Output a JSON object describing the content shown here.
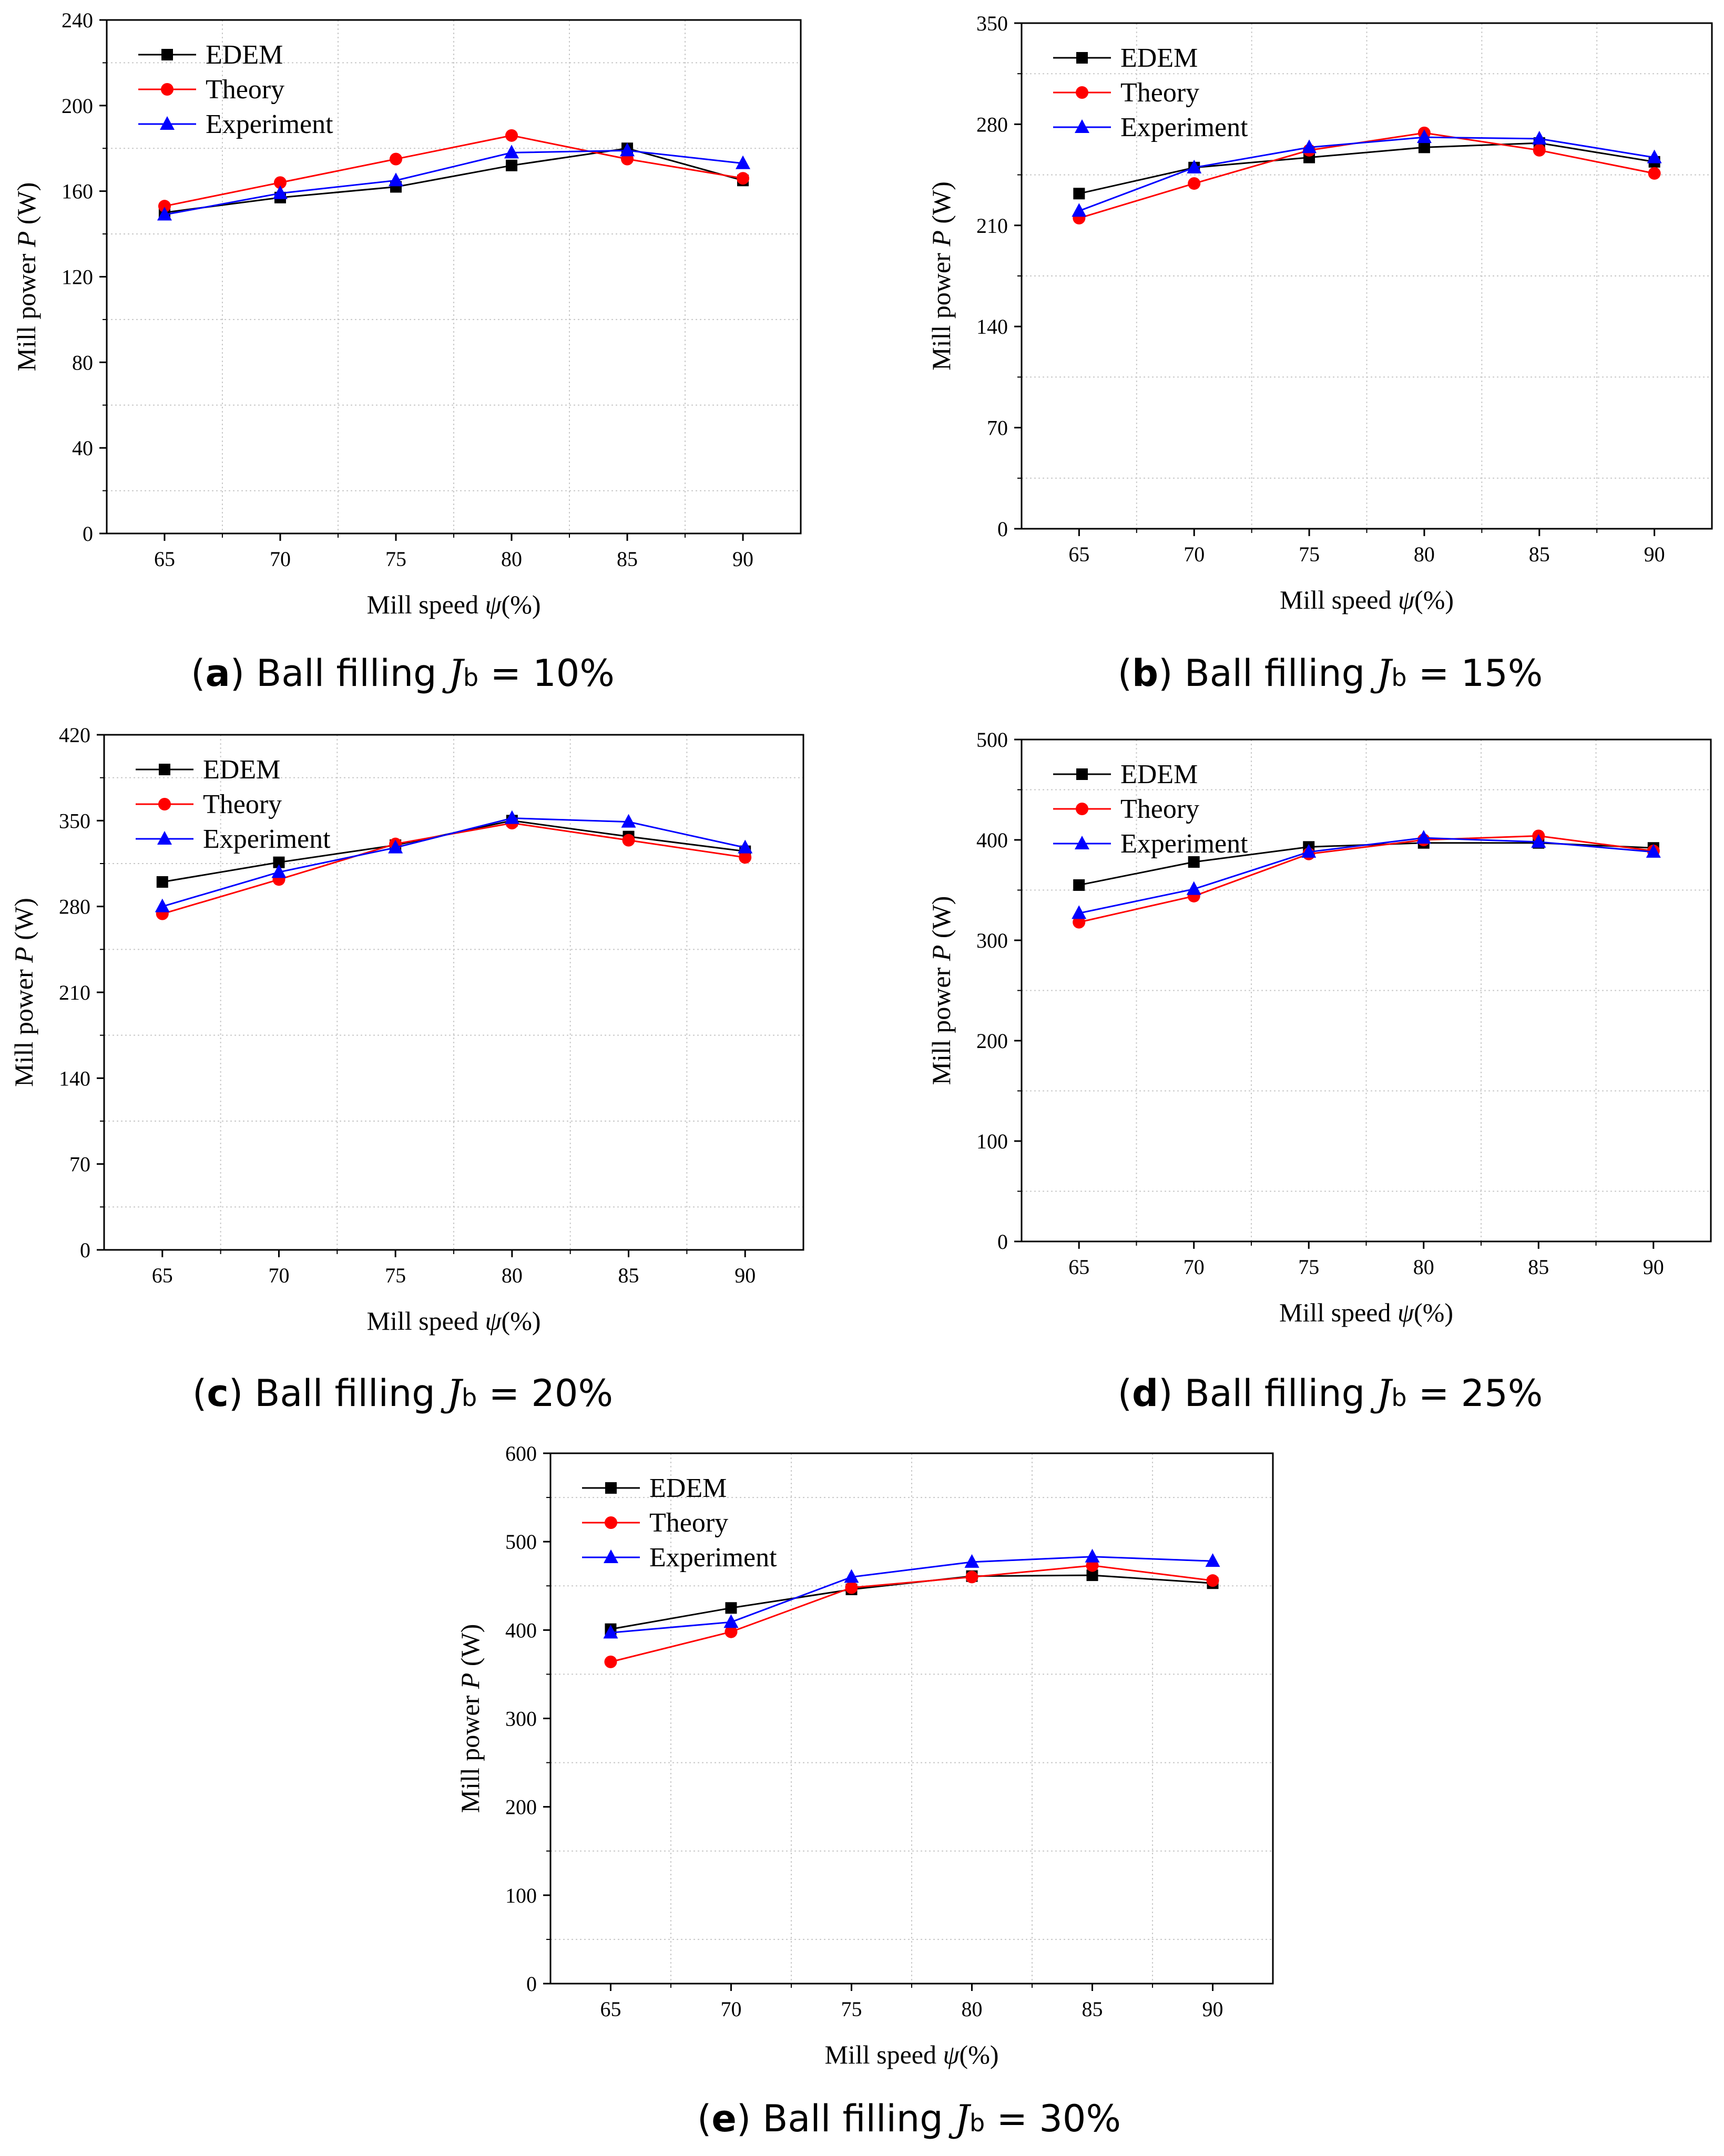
{
  "legend": [
    "EDEM",
    "Theory",
    "Experiment"
  ],
  "colors": {
    "EDEM": "#000000",
    "Theory": "#ff0000",
    "Experiment": "#0000ff"
  },
  "chart_data": [
    {
      "type": "line",
      "panel": "a",
      "caption": {
        "letter": "a",
        "text": "Ball filling ",
        "sym": "J",
        "sub": "b",
        "eq": " = 10%"
      },
      "xlabel": "Mill speed ",
      "xsym": "ψ",
      "xunit": "(%)",
      "ylabel": "Mill power ",
      "ysym": "P",
      "yunit": " (W)",
      "x": [
        65,
        70,
        75,
        80,
        85,
        90
      ],
      "yticks": [
        0,
        40,
        80,
        120,
        160,
        200,
        240
      ],
      "ylim": [
        0,
        240
      ],
      "grid": true,
      "series": [
        {
          "name": "EDEM",
          "values": [
            150,
            157,
            162,
            172,
            180,
            165
          ]
        },
        {
          "name": "Theory",
          "values": [
            153,
            164,
            175,
            186,
            175,
            166
          ]
        },
        {
          "name": "Experiment",
          "values": [
            149,
            159,
            165,
            178,
            179,
            173
          ]
        }
      ]
    },
    {
      "type": "line",
      "panel": "b",
      "caption": {
        "letter": "b",
        "text": "Ball filling ",
        "sym": "J",
        "sub": "b",
        "eq": " = 15%"
      },
      "xlabel": "Mill speed ",
      "xsym": "ψ",
      "xunit": "(%)",
      "ylabel": "Mill power ",
      "ysym": "P",
      "yunit": " (W)",
      "x": [
        65,
        70,
        75,
        80,
        85,
        90
      ],
      "yticks": [
        0,
        70,
        140,
        210,
        280,
        350
      ],
      "ylim": [
        0,
        350
      ],
      "grid": true,
      "series": [
        {
          "name": "EDEM",
          "values": [
            232,
            250,
            257,
            264,
            267,
            254
          ]
        },
        {
          "name": "Theory",
          "values": [
            215,
            239,
            262,
            274,
            262,
            246
          ]
        },
        {
          "name": "Experiment",
          "values": [
            220,
            250,
            264,
            271,
            270,
            257
          ]
        }
      ]
    },
    {
      "type": "line",
      "panel": "c",
      "caption": {
        "letter": "c",
        "text": "Ball filling ",
        "sym": "J",
        "sub": "b",
        "eq": " = 20%"
      },
      "xlabel": "Mill speed ",
      "xsym": "ψ",
      "xunit": "(%)",
      "ylabel": "Mill power ",
      "ysym": "P",
      "yunit": " (W)",
      "x": [
        65,
        70,
        75,
        80,
        85,
        90
      ],
      "yticks": [
        0,
        70,
        140,
        210,
        280,
        350,
        420
      ],
      "ylim": [
        0,
        420
      ],
      "grid": true,
      "series": [
        {
          "name": "EDEM",
          "values": [
            300,
            316,
            330,
            350,
            337,
            325
          ]
        },
        {
          "name": "Theory",
          "values": [
            274,
            302,
            331,
            348,
            334,
            320
          ]
        },
        {
          "name": "Experiment",
          "values": [
            280,
            308,
            328,
            352,
            349,
            328
          ]
        }
      ]
    },
    {
      "type": "line",
      "panel": "d",
      "caption": {
        "letter": "d",
        "text": "Ball filling ",
        "sym": "J",
        "sub": "b",
        "eq": " = 25%"
      },
      "xlabel": "Mill speed ",
      "xsym": "ψ",
      "xunit": "(%)",
      "ylabel": "Mill power ",
      "ysym": "P",
      "yunit": " (W)",
      "x": [
        65,
        70,
        75,
        80,
        85,
        90
      ],
      "yticks": [
        0,
        100,
        200,
        300,
        400,
        500
      ],
      "ylim": [
        0,
        500
      ],
      "grid": true,
      "series": [
        {
          "name": "EDEM",
          "values": [
            355,
            378,
            393,
            397,
            397,
            392
          ]
        },
        {
          "name": "Theory",
          "values": [
            318,
            344,
            386,
            400,
            404,
            389
          ]
        },
        {
          "name": "Experiment",
          "values": [
            327,
            351,
            388,
            402,
            398,
            388
          ]
        }
      ]
    },
    {
      "type": "line",
      "panel": "e",
      "caption": {
        "letter": "e",
        "text": "Ball filling ",
        "sym": "J",
        "sub": "b",
        "eq": " = 30%"
      },
      "xlabel": "Mill speed ",
      "xsym": "ψ",
      "xunit": "(%)",
      "ylabel": "Mill power ",
      "ysym": "P",
      "yunit": " (W)",
      "x": [
        65,
        70,
        75,
        80,
        85,
        90
      ],
      "yticks": [
        0,
        100,
        200,
        300,
        400,
        500,
        600
      ],
      "ylim": [
        0,
        600
      ],
      "grid": true,
      "series": [
        {
          "name": "EDEM",
          "values": [
            401,
            425,
            446,
            461,
            462,
            453
          ]
        },
        {
          "name": "Theory",
          "values": [
            364,
            398,
            448,
            460,
            473,
            456
          ]
        },
        {
          "name": "Experiment",
          "values": [
            397,
            409,
            460,
            477,
            483,
            478
          ]
        }
      ]
    }
  ]
}
